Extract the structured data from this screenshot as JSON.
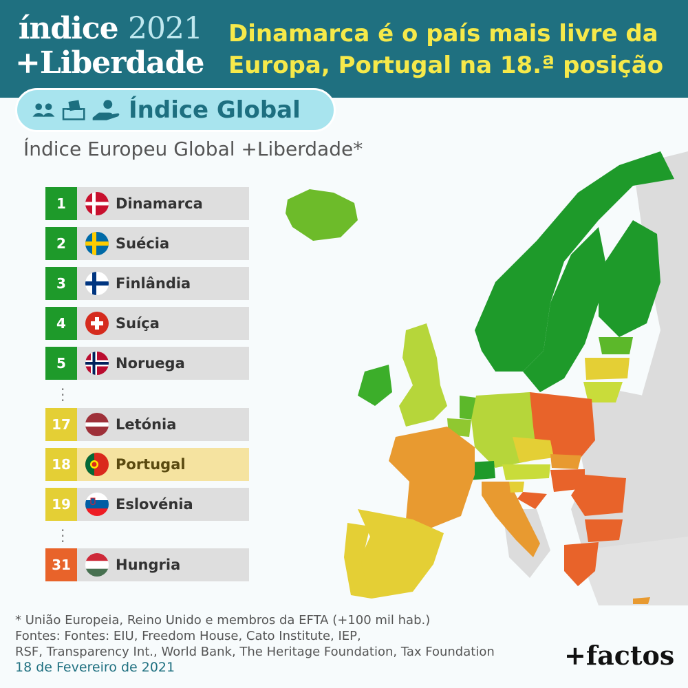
{
  "header": {
    "brand_word": "índice",
    "brand_year": "2021",
    "brand_line2": "+Liberdade",
    "headline": "Dinamarca é o país mais livre da Europa, Portugal na 18.ª posição"
  },
  "tab": {
    "label": "Índice Global"
  },
  "subtitle": "Índice Europeu Global +Liberdade*",
  "ranking": [
    {
      "rank": "1",
      "country": "Dinamarca",
      "tier": "green"
    },
    {
      "rank": "2",
      "country": "Suécia",
      "tier": "green"
    },
    {
      "rank": "3",
      "country": "Finlândia",
      "tier": "green"
    },
    {
      "rank": "4",
      "country": "Suíça",
      "tier": "green"
    },
    {
      "rank": "5",
      "country": "Noruega",
      "tier": "green"
    },
    {
      "rank": "17",
      "country": "Letónia",
      "tier": "yellow"
    },
    {
      "rank": "18",
      "country": "Portugal",
      "tier": "yellow",
      "highlight": true
    },
    {
      "rank": "19",
      "country": "Eslovénia",
      "tier": "yellow"
    },
    {
      "rank": "31",
      "country": "Hungria",
      "tier": "orange"
    }
  ],
  "colors": {
    "green": "#1e9a2a",
    "yellow": "#e4cf35",
    "orange": "#e8632a",
    "highlight_row": "#f5e3a0",
    "header_bg": "#1f7080",
    "headline": "#f6e94a"
  },
  "footer": {
    "note": "* União Europeia, Reino Unido e membros da EFTA (+100 mil hab.)",
    "sources_line1": "Fontes: Fontes: EIU, Freedom House, Cato Institute, IEP,",
    "sources_line2": "RSF, Transparency Int., World Bank, The Heritage Foundation, Tax Foundation",
    "date": "18 de Fevereiro de 2021"
  },
  "logo": "+factos",
  "icons": [
    "people-icon",
    "ballot-box-icon",
    "hand-coin-icon"
  ]
}
